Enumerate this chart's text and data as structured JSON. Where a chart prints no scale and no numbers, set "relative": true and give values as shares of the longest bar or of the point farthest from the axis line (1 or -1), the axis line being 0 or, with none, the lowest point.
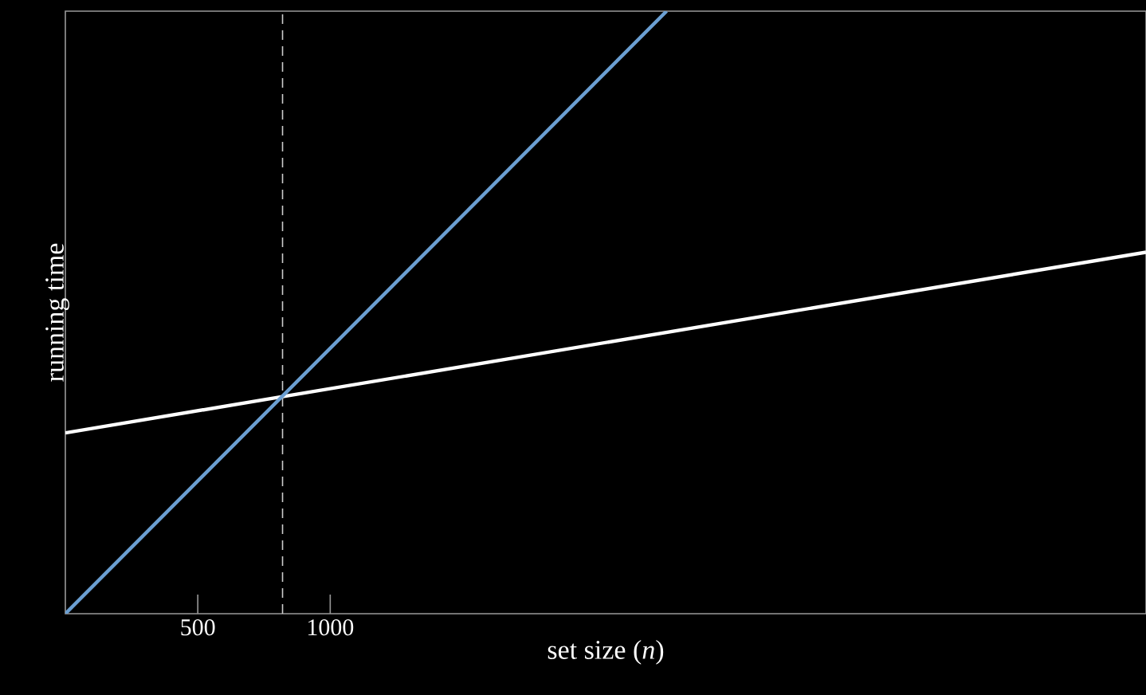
{
  "chart_data": {
    "type": "line",
    "xlabel": "set size (*n*)",
    "ylabel": "running time",
    "relative": true,
    "xlim": [
      0,
      4080
    ],
    "xticks": [
      500,
      1000
    ],
    "series": [
      {
        "color": "#ffffff",
        "x": [
          0,
          4080
        ],
        "values": [
          0.3,
          0.6
        ]
      },
      {
        "color": "#6b9fd2",
        "x": [
          0,
          2270
        ],
        "values": [
          0,
          1
        ]
      }
    ],
    "ref_lines": [
      {
        "axis": "x",
        "value": 820,
        "color": "#cccccc",
        "line_style": "dashed"
      }
    ],
    "marker": "none",
    "line_style": "solid",
    "grid": false
  }
}
